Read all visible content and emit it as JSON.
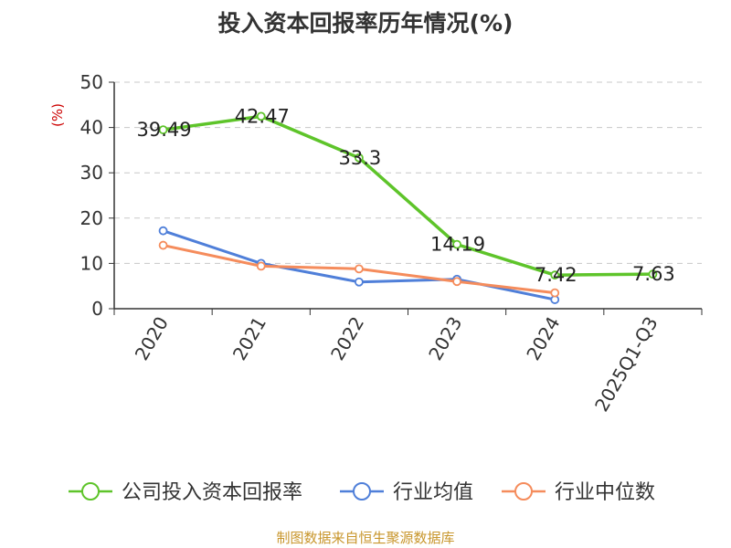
{
  "chart_data": {
    "type": "line",
    "title": "投入资本回报率历年情况(%)",
    "ylabel": "(%)",
    "xlabel": "",
    "categories": [
      "2020",
      "2021",
      "2022",
      "2023",
      "2024",
      "2025Q1-Q3"
    ],
    "ylim": [
      0,
      50
    ],
    "yticks": [
      0,
      10,
      20,
      30,
      40,
      50
    ],
    "grid": true,
    "legend_position": "bottom",
    "series": [
      {
        "name": "公司投入资本回报率",
        "color": "#5ec42a",
        "values": [
          39.49,
          42.47,
          33.3,
          14.19,
          7.42,
          7.63
        ],
        "labels": [
          "39.49",
          "42.47",
          "33.3",
          "14.19",
          "7.42",
          "7.63"
        ]
      },
      {
        "name": "行业均值",
        "color": "#4f7fd9",
        "values": [
          17.2,
          10.0,
          5.9,
          6.5,
          2.0,
          null
        ]
      },
      {
        "name": "行业中位数",
        "color": "#f58c5c",
        "values": [
          14.0,
          9.4,
          8.8,
          6.0,
          3.5,
          null
        ]
      }
    ],
    "source": "制图数据来自恒生聚源数据库"
  }
}
